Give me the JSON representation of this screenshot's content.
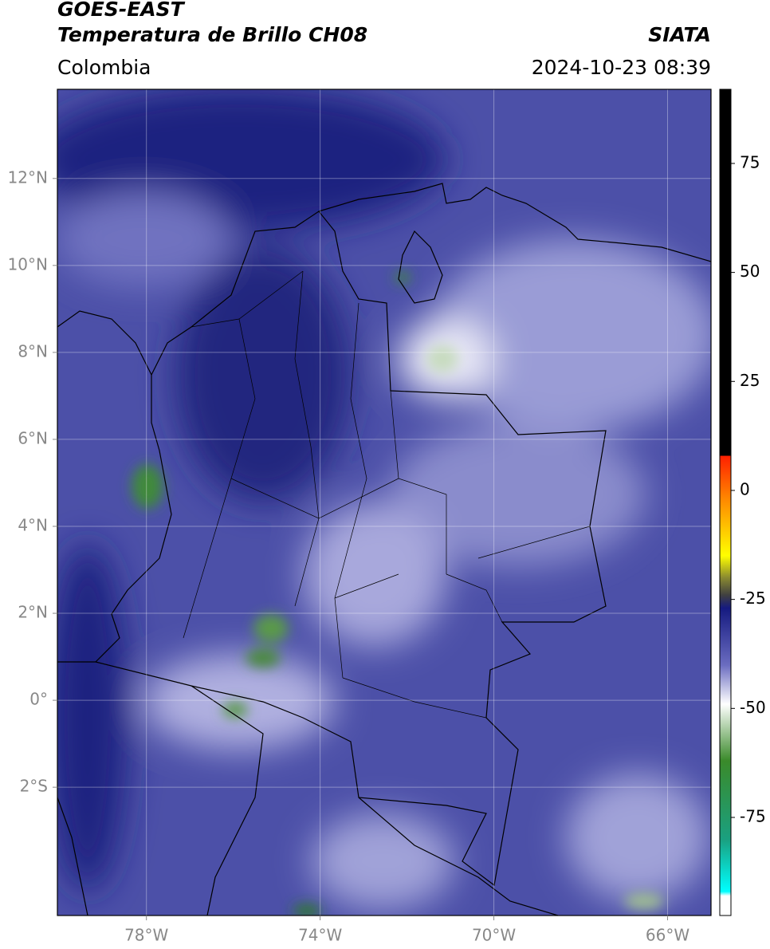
{
  "chart_data": {
    "type": "map",
    "title": "GOES-EAST",
    "subtitle": "Temperatura de Brillo CH08",
    "region": "Colombia",
    "source": "SIATA",
    "timestamp": "2024-10-23 08:39",
    "xlim": [
      -80.05,
      -65
    ],
    "ylim": [
      -4.95,
      14.05
    ],
    "xticks": [
      {
        "value": -78,
        "label": "78°W"
      },
      {
        "value": -74,
        "label": "74°W"
      },
      {
        "value": -70,
        "label": "70°W"
      },
      {
        "value": -66,
        "label": "66°W"
      }
    ],
    "yticks": [
      {
        "value": 12,
        "label": "12°N"
      },
      {
        "value": 10,
        "label": "10°N"
      },
      {
        "value": 8,
        "label": "8°N"
      },
      {
        "value": 6,
        "label": "6°N"
      },
      {
        "value": 4,
        "label": "4°N"
      },
      {
        "value": 2,
        "label": "2°N"
      },
      {
        "value": 0,
        "label": "0°"
      },
      {
        "value": -2,
        "label": "2°S"
      }
    ],
    "grid": true,
    "colorbar": {
      "lim": [
        -97.5,
        92
      ],
      "ticks": [
        75,
        50,
        25,
        0,
        -25,
        -50,
        -75
      ],
      "stops": [
        {
          "value": 92,
          "color": "#000000"
        },
        {
          "value": 8,
          "color": "#000000"
        },
        {
          "value": 7.9,
          "color": "#ff2000"
        },
        {
          "value": -2,
          "color": "#ff8800"
        },
        {
          "value": -15,
          "color": "#ffff00"
        },
        {
          "value": -20,
          "color": "#8a8a30"
        },
        {
          "value": -24,
          "color": "#404040"
        },
        {
          "value": -27,
          "color": "#151a80"
        },
        {
          "value": -40,
          "color": "#6a6cc0"
        },
        {
          "value": -49,
          "color": "#ffffff"
        },
        {
          "value": -62,
          "color": "#3a8a2a"
        },
        {
          "value": -80,
          "color": "#1aa080"
        },
        {
          "value": -92,
          "color": "#00ffff"
        },
        {
          "value": -93,
          "color": "#ffffff"
        },
        {
          "value": -97.5,
          "color": "#ffffff"
        }
      ]
    }
  }
}
